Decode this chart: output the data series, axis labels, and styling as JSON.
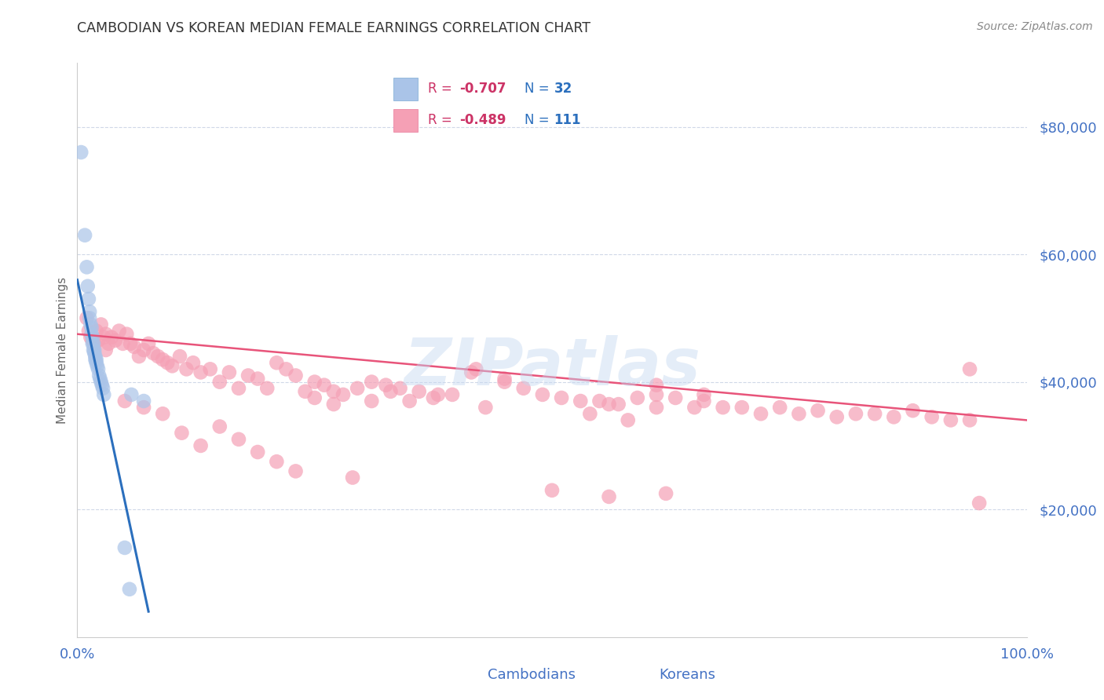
{
  "title": "CAMBODIAN VS KOREAN MEDIAN FEMALE EARNINGS CORRELATION CHART",
  "source": "Source: ZipAtlas.com",
  "ylabel": "Median Female Earnings",
  "watermark": "ZIPatlas",
  "ylim": [
    0,
    90000
  ],
  "xlim": [
    0,
    1.0
  ],
  "yticks": [
    20000,
    40000,
    60000,
    80000
  ],
  "ytick_labels": [
    "$20,000",
    "$40,000",
    "$60,000",
    "$80,000"
  ],
  "background_color": "#ffffff",
  "grid_color": "#d0d8e8",
  "cambodian_color": "#aac4e8",
  "korean_color": "#f5a0b5",
  "cambodian_edge_color": "#7aaad4",
  "korean_edge_color": "#e87899",
  "cambodian_line_color": "#2b6fbd",
  "korean_line_color": "#e8547a",
  "axis_label_color": "#4472c4",
  "title_color": "#333333",
  "source_color": "#888888",
  "legend_r_color": "#cc3366",
  "legend_n_color": "#2b6fbd",
  "cambodian_points_x": [
    0.004,
    0.008,
    0.01,
    0.011,
    0.012,
    0.013,
    0.013,
    0.014,
    0.015,
    0.015,
    0.016,
    0.016,
    0.017,
    0.017,
    0.018,
    0.018,
    0.019,
    0.019,
    0.02,
    0.02,
    0.021,
    0.022,
    0.023,
    0.024,
    0.025,
    0.026,
    0.027,
    0.028,
    0.05,
    0.055,
    0.057,
    0.07
  ],
  "cambodian_points_y": [
    76000,
    63000,
    58000,
    55000,
    53000,
    51000,
    50000,
    49000,
    48500,
    47500,
    47000,
    46000,
    46000,
    45000,
    45000,
    44500,
    44000,
    43500,
    43500,
    43000,
    42500,
    42000,
    41000,
    40500,
    40000,
    39500,
    39000,
    38000,
    14000,
    7500,
    38000,
    37000
  ],
  "korean_points_x": [
    0.01,
    0.012,
    0.014,
    0.016,
    0.018,
    0.02,
    0.022,
    0.025,
    0.028,
    0.03,
    0.033,
    0.036,
    0.04,
    0.044,
    0.048,
    0.052,
    0.056,
    0.06,
    0.065,
    0.07,
    0.075,
    0.08,
    0.085,
    0.09,
    0.095,
    0.1,
    0.108,
    0.115,
    0.122,
    0.13,
    0.14,
    0.15,
    0.16,
    0.17,
    0.18,
    0.19,
    0.2,
    0.21,
    0.22,
    0.23,
    0.24,
    0.25,
    0.26,
    0.27,
    0.28,
    0.295,
    0.31,
    0.325,
    0.34,
    0.36,
    0.375,
    0.395,
    0.415,
    0.43,
    0.45,
    0.47,
    0.49,
    0.51,
    0.53,
    0.55,
    0.57,
    0.59,
    0.61,
    0.63,
    0.65,
    0.66,
    0.68,
    0.7,
    0.72,
    0.74,
    0.76,
    0.78,
    0.8,
    0.82,
    0.84,
    0.86,
    0.88,
    0.9,
    0.92,
    0.94,
    0.03,
    0.05,
    0.07,
    0.09,
    0.11,
    0.13,
    0.15,
    0.17,
    0.19,
    0.21,
    0.23,
    0.25,
    0.27,
    0.29,
    0.31,
    0.33,
    0.35,
    0.45,
    0.5,
    0.56,
    0.62,
    0.54,
    0.58,
    0.61,
    0.66,
    0.56,
    0.61,
    0.38,
    0.42,
    0.94,
    0.95
  ],
  "korean_points_y": [
    50000,
    48000,
    47000,
    46500,
    46000,
    48000,
    46500,
    49000,
    47000,
    47500,
    46000,
    47000,
    46500,
    48000,
    46000,
    47500,
    46000,
    45500,
    44000,
    45000,
    46000,
    44500,
    44000,
    43500,
    43000,
    42500,
    44000,
    42000,
    43000,
    41500,
    42000,
    40000,
    41500,
    39000,
    41000,
    40500,
    39000,
    43000,
    42000,
    41000,
    38500,
    40000,
    39500,
    38500,
    38000,
    39000,
    37000,
    39500,
    39000,
    38500,
    37500,
    38000,
    41500,
    36000,
    40000,
    39000,
    38000,
    37500,
    37000,
    37000,
    36500,
    37500,
    36000,
    37500,
    36000,
    38000,
    36000,
    36000,
    35000,
    36000,
    35000,
    35500,
    34500,
    35000,
    35000,
    34500,
    35500,
    34500,
    34000,
    34000,
    45000,
    37000,
    36000,
    35000,
    32000,
    30000,
    33000,
    31000,
    29000,
    27500,
    26000,
    37500,
    36500,
    25000,
    40000,
    38500,
    37000,
    40500,
    23000,
    22000,
    22500,
    35000,
    34000,
    38000,
    37000,
    36500,
    39500,
    38000,
    42000,
    42000,
    21000
  ],
  "cambodian_line_x": [
    0.0,
    0.075
  ],
  "cambodian_line_y": [
    56000,
    4000
  ],
  "korean_line_x": [
    0.0,
    1.0
  ],
  "korean_line_y": [
    47500,
    34000
  ]
}
